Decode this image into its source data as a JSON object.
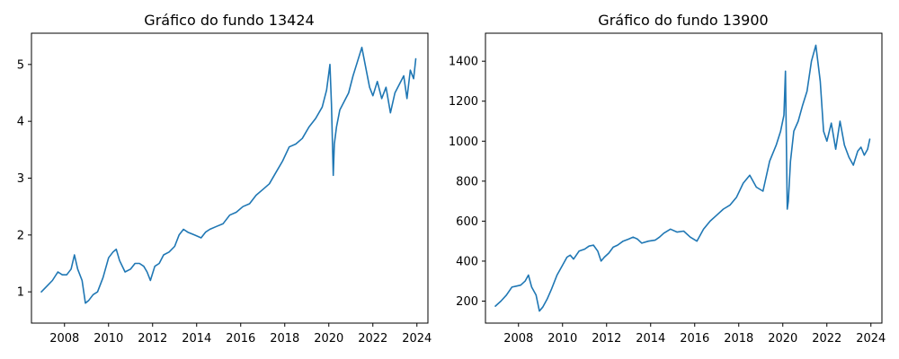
{
  "figure": {
    "colors": {
      "series": "#1f77b4",
      "axes": "#000000",
      "background": "#ffffff"
    }
  },
  "chart_data": [
    {
      "type": "line",
      "title": "Gráfico do fundo 13424",
      "xlabel": "",
      "ylabel": "",
      "xlim": [
        2006.5,
        2024.5
      ],
      "ylim": [
        0.45,
        5.55
      ],
      "xticks": [
        2008,
        2010,
        2012,
        2014,
        2016,
        2018,
        2020,
        2022,
        2024
      ],
      "yticks": [
        1,
        2,
        3,
        4,
        5
      ],
      "grid": false,
      "legend": "none",
      "x": [
        2006.95,
        2007.2,
        2007.45,
        2007.7,
        2007.9,
        2008.1,
        2008.3,
        2008.45,
        2008.6,
        2008.8,
        2008.95,
        2009.1,
        2009.3,
        2009.5,
        2009.75,
        2010.0,
        2010.2,
        2010.35,
        2010.5,
        2010.75,
        2011.0,
        2011.2,
        2011.4,
        2011.6,
        2011.75,
        2011.9,
        2012.1,
        2012.3,
        2012.5,
        2012.75,
        2013.0,
        2013.2,
        2013.4,
        2013.6,
        2013.9,
        2014.2,
        2014.4,
        2014.6,
        2014.9,
        2015.2,
        2015.5,
        2015.8,
        2016.1,
        2016.4,
        2016.7,
        2017.0,
        2017.3,
        2017.6,
        2017.9,
        2018.2,
        2018.5,
        2018.8,
        2019.1,
        2019.4,
        2019.7,
        2019.9,
        2020.05,
        2020.12,
        2020.2,
        2020.25,
        2020.35,
        2020.5,
        2020.7,
        2020.9,
        2021.1,
        2021.3,
        2021.5,
        2021.7,
        2021.85,
        2022.0,
        2022.2,
        2022.4,
        2022.6,
        2022.8,
        2023.0,
        2023.2,
        2023.4,
        2023.55,
        2023.7,
        2023.85,
        2023.95
      ],
      "series": [
        {
          "values": [
            1.0,
            1.1,
            1.2,
            1.35,
            1.3,
            1.3,
            1.4,
            1.65,
            1.4,
            1.2,
            0.8,
            0.85,
            0.95,
            1.0,
            1.25,
            1.6,
            1.7,
            1.75,
            1.55,
            1.35,
            1.4,
            1.5,
            1.5,
            1.45,
            1.35,
            1.2,
            1.45,
            1.5,
            1.65,
            1.7,
            1.8,
            2.0,
            2.1,
            2.05,
            2.0,
            1.95,
            2.05,
            2.1,
            2.15,
            2.2,
            2.35,
            2.4,
            2.5,
            2.55,
            2.7,
            2.8,
            2.9,
            3.1,
            3.3,
            3.55,
            3.6,
            3.7,
            3.9,
            4.05,
            4.25,
            4.55,
            5.0,
            4.3,
            3.05,
            3.6,
            3.9,
            4.2,
            4.35,
            4.5,
            4.8,
            5.05,
            5.3,
            4.9,
            4.6,
            4.45,
            4.7,
            4.4,
            4.6,
            4.15,
            4.5,
            4.65,
            4.8,
            4.4,
            4.9,
            4.75,
            5.1
          ]
        }
      ]
    },
    {
      "type": "line",
      "title": "Gráfico do fundo 13900",
      "xlabel": "",
      "ylabel": "",
      "xlim": [
        2006.5,
        2024.5
      ],
      "ylim": [
        90,
        1540
      ],
      "xticks": [
        2008,
        2010,
        2012,
        2014,
        2016,
        2018,
        2020,
        2022,
        2024
      ],
      "yticks": [
        200,
        400,
        600,
        800,
        1000,
        1200,
        1400
      ],
      "grid": false,
      "legend": "none",
      "x": [
        2006.95,
        2007.2,
        2007.45,
        2007.7,
        2007.9,
        2008.1,
        2008.3,
        2008.45,
        2008.6,
        2008.8,
        2008.95,
        2009.1,
        2009.3,
        2009.5,
        2009.75,
        2010.0,
        2010.2,
        2010.35,
        2010.5,
        2010.75,
        2011.0,
        2011.2,
        2011.4,
        2011.6,
        2011.75,
        2011.9,
        2012.1,
        2012.3,
        2012.5,
        2012.75,
        2013.0,
        2013.2,
        2013.4,
        2013.6,
        2013.9,
        2014.2,
        2014.4,
        2014.6,
        2014.9,
        2015.2,
        2015.5,
        2015.8,
        2016.1,
        2016.4,
        2016.7,
        2017.0,
        2017.3,
        2017.6,
        2017.9,
        2018.2,
        2018.5,
        2018.8,
        2019.1,
        2019.4,
        2019.7,
        2019.9,
        2020.05,
        2020.12,
        2020.2,
        2020.25,
        2020.35,
        2020.5,
        2020.7,
        2020.9,
        2021.1,
        2021.3,
        2021.5,
        2021.7,
        2021.85,
        2022.0,
        2022.2,
        2022.4,
        2022.6,
        2022.8,
        2023.0,
        2023.2,
        2023.4,
        2023.55,
        2023.7,
        2023.85,
        2023.95
      ],
      "series": [
        {
          "values": [
            175,
            200,
            230,
            270,
            275,
            280,
            300,
            330,
            270,
            230,
            150,
            170,
            210,
            260,
            330,
            380,
            420,
            430,
            410,
            450,
            460,
            475,
            480,
            450,
            400,
            420,
            440,
            470,
            480,
            500,
            510,
            520,
            510,
            490,
            500,
            505,
            520,
            540,
            560,
            545,
            550,
            520,
            500,
            560,
            600,
            630,
            660,
            680,
            720,
            790,
            830,
            770,
            750,
            900,
            980,
            1050,
            1130,
            1350,
            660,
            700,
            900,
            1050,
            1100,
            1180,
            1250,
            1400,
            1480,
            1300,
            1050,
            1000,
            1090,
            960,
            1100,
            980,
            920,
            880,
            950,
            970,
            930,
            960,
            1010
          ]
        }
      ]
    }
  ]
}
